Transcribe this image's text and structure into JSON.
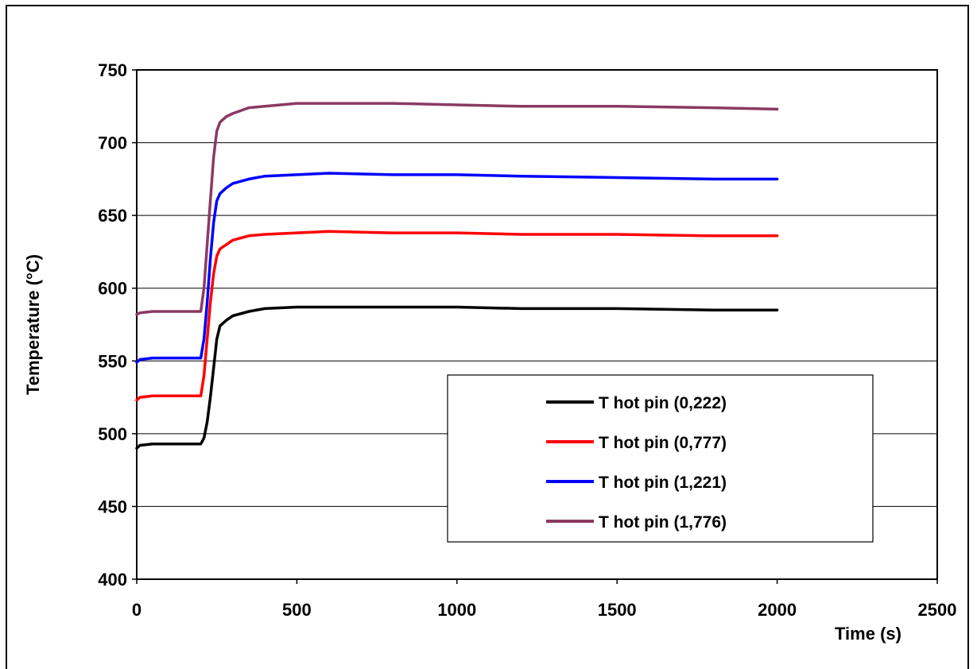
{
  "chart_data": {
    "type": "line",
    "title": "",
    "xlabel": "Time (s)",
    "ylabel": "Temperature (°C)",
    "xlim": [
      0,
      2500
    ],
    "ylim": [
      400,
      750
    ],
    "x_ticks": [
      "0",
      "500",
      "1000",
      "1500",
      "2000",
      "2500"
    ],
    "y_ticks": [
      "400",
      "450",
      "500",
      "550",
      "600",
      "650",
      "700",
      "750"
    ],
    "grid": "horizontal",
    "legend_position": "bottom-right",
    "series": [
      {
        "name": "T hot pin (0,222)",
        "color": "#000000",
        "x": [
          0,
          10,
          50,
          100,
          150,
          200,
          210,
          220,
          230,
          240,
          250,
          260,
          280,
          300,
          350,
          400,
          500,
          600,
          800,
          1000,
          1200,
          1500,
          1800,
          2000
        ],
        "y": [
          490,
          492,
          493,
          493,
          493,
          493,
          497,
          508,
          525,
          545,
          565,
          574,
          578,
          581,
          584,
          586,
          587,
          587,
          587,
          587,
          586,
          586,
          585,
          585
        ]
      },
      {
        "name": "T hot pin (0,777)",
        "color": "#ff0000",
        "x": [
          0,
          10,
          50,
          100,
          150,
          200,
          210,
          220,
          230,
          240,
          250,
          260,
          280,
          300,
          350,
          400,
          500,
          600,
          800,
          1000,
          1200,
          1500,
          1800,
          2000
        ],
        "y": [
          523,
          525,
          526,
          526,
          526,
          526,
          540,
          565,
          590,
          610,
          622,
          627,
          630,
          633,
          636,
          637,
          638,
          639,
          638,
          638,
          637,
          637,
          636,
          636
        ]
      },
      {
        "name": "T hot pin (1,221)",
        "color": "#0000ff",
        "x": [
          0,
          10,
          50,
          100,
          150,
          200,
          210,
          220,
          230,
          240,
          250,
          260,
          280,
          300,
          350,
          400,
          500,
          600,
          800,
          1000,
          1200,
          1500,
          1800,
          2000
        ],
        "y": [
          549,
          551,
          552,
          552,
          552,
          552,
          565,
          590,
          620,
          645,
          660,
          665,
          669,
          672,
          675,
          677,
          678,
          679,
          678,
          678,
          677,
          676,
          675,
          675
        ]
      },
      {
        "name": "T hot pin (1,776)",
        "color": "#8b3a62",
        "x": [
          0,
          10,
          50,
          100,
          150,
          200,
          210,
          220,
          230,
          240,
          250,
          260,
          280,
          300,
          350,
          400,
          500,
          600,
          800,
          1000,
          1200,
          1500,
          1800,
          2000
        ],
        "y": [
          582,
          583,
          584,
          584,
          584,
          584,
          600,
          630,
          660,
          690,
          708,
          714,
          718,
          720,
          724,
          725,
          727,
          727,
          727,
          726,
          725,
          725,
          724,
          723
        ]
      }
    ]
  }
}
